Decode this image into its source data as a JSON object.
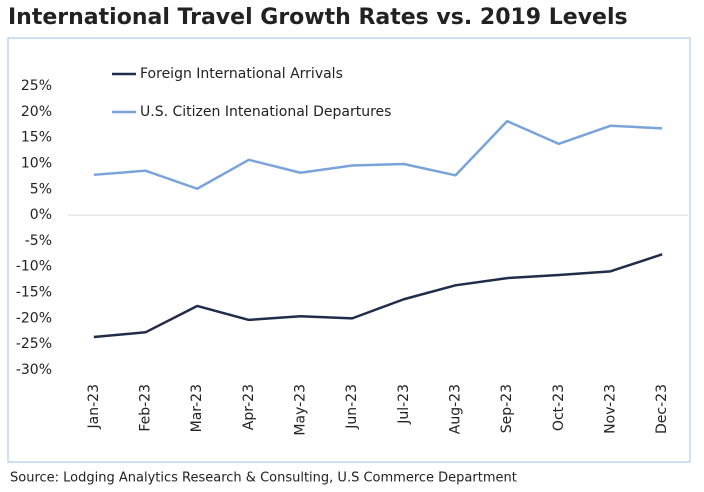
{
  "chart_data": {
    "type": "line",
    "title": "International Travel Growth Rates vs. 2019 Levels",
    "source": "Source: Lodging Analytics Research & Consulting, U.S Commerce Department",
    "categories": [
      "Jan-23",
      "Feb-23",
      "Mar-23",
      "Apr-23",
      "May-23",
      "Jun-23",
      "Jul-23",
      "Aug-23",
      "Sep-23",
      "Oct-23",
      "Nov-23",
      "Dec-23"
    ],
    "series": [
      {
        "name": "Foreign International Arrivals",
        "color": "#1f2d4a",
        "values": [
          -23.6,
          -22.7,
          -17.6,
          -20.3,
          -19.6,
          -20,
          -16.3,
          -13.6,
          -12.2,
          -11.6,
          -10.9,
          -7.6
        ]
      },
      {
        "name": "U.S. Citizen Intenational Departures",
        "color": "#7aa3d9",
        "values": [
          7.8,
          8.6,
          5.1,
          10.7,
          8.2,
          9.6,
          9.9,
          7.7,
          18.2,
          13.8,
          17.3,
          16.8
        ]
      }
    ],
    "ylim": [
      -30,
      25
    ],
    "yticks": [
      {
        "value": 25,
        "label": "25%"
      },
      {
        "value": 20,
        "label": "20%"
      },
      {
        "value": 15,
        "label": "15%"
      },
      {
        "value": 10,
        "label": "10%"
      },
      {
        "value": 5,
        "label": "5%"
      },
      {
        "value": 0,
        "label": "0%"
      },
      {
        "value": -5,
        "label": "-5%"
      },
      {
        "value": -10,
        "label": "-10%"
      },
      {
        "value": -15,
        "label": "-15%"
      },
      {
        "value": -20,
        "label": "-20%"
      },
      {
        "value": -25,
        "label": "-25%"
      },
      {
        "value": -30,
        "label": "-30%"
      }
    ],
    "legend": "top-left"
  }
}
